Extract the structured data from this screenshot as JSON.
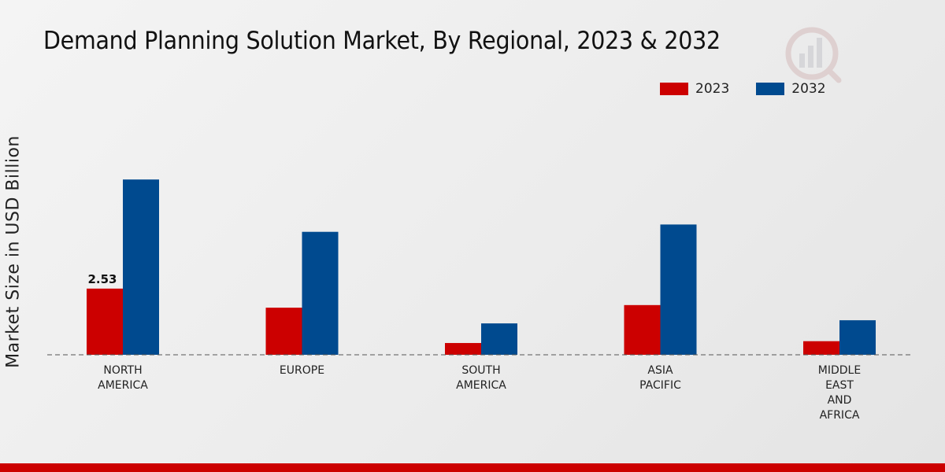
{
  "chart_data": {
    "type": "bar",
    "title": "Demand Planning Solution Market, By Regional, 2023 & 2032",
    "xlabel": "",
    "ylabel": "Market Size in USD Billion",
    "ylim": [
      0,
      8.6
    ],
    "categories": [
      "NORTH\nAMERICA",
      "EUROPE",
      "SOUTH\nAMERICA",
      "ASIA\nPACIFIC",
      "MIDDLE\nEAST\nAND\nAFRICA"
    ],
    "series": [
      {
        "name": "2023",
        "color": "#cc0000",
        "values": [
          2.53,
          1.8,
          0.45,
          1.9,
          0.52
        ]
      },
      {
        "name": "2032",
        "color": "#004a8f",
        "values": [
          6.7,
          4.7,
          1.2,
          4.98,
          1.32
        ]
      }
    ],
    "data_labels": [
      {
        "series": 0,
        "index": 0,
        "text": "2.53"
      }
    ],
    "legend_position": "top-right",
    "grid": false
  }
}
